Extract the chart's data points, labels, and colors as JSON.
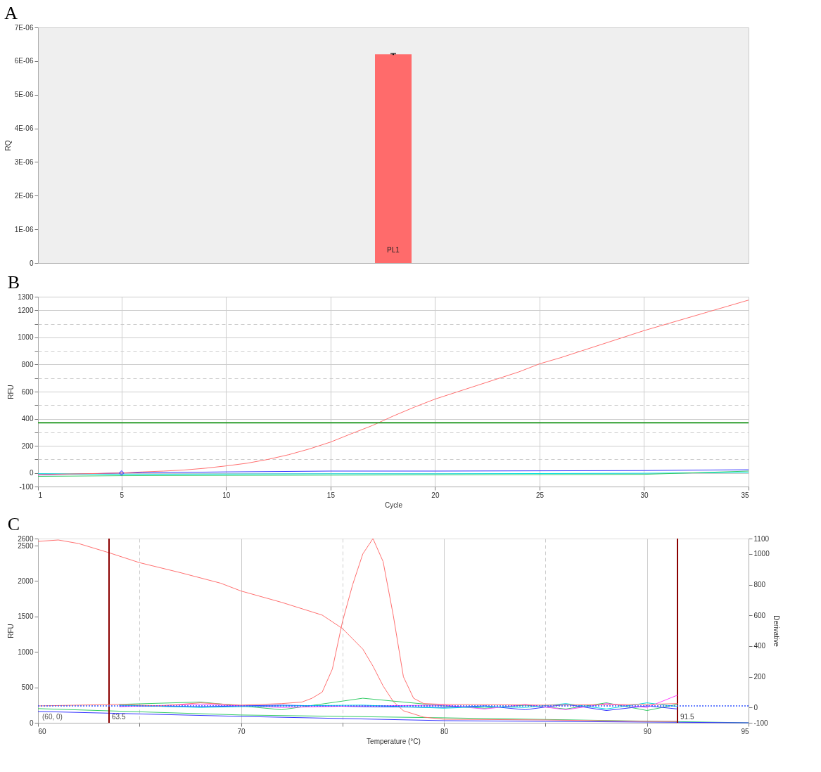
{
  "chart_data": [
    {
      "type": "bar",
      "title": "A",
      "ylabel": "RQ",
      "categories": [
        "PL1"
      ],
      "values": [
        6.2e-06
      ],
      "errors": [
        2e-08
      ],
      "color": "#ff6b6b",
      "ylim": [
        0,
        7e-06
      ],
      "yticks": [
        0,
        {
          "value": 1e-06,
          "label": "1E-06"
        },
        {
          "value": 2e-06,
          "label": "2E-06"
        },
        {
          "value": 3e-06,
          "label": "3E-06"
        },
        {
          "value": 4e-06,
          "label": "4E-06"
        },
        {
          "value": 5e-06,
          "label": "5E-06"
        },
        {
          "value": 6e-06,
          "label": "6E-06"
        },
        {
          "value": 7e-06,
          "label": "7E-06"
        }
      ]
    },
    {
      "type": "line",
      "title": "B",
      "xlabel": "Cycle",
      "ylabel": "RFU",
      "grid": true,
      "xlim": [
        1,
        35
      ],
      "xticks": [
        1,
        5,
        10,
        15,
        20,
        25,
        30,
        35
      ],
      "ylim": [
        -100,
        1300
      ],
      "yticks": [
        -100,
        0,
        {
          "value": 100,
          "label": null
        },
        200,
        {
          "value": 300,
          "label": null
        },
        400,
        {
          "value": 500,
          "label": null
        },
        600,
        {
          "value": 700,
          "label": null
        },
        800,
        {
          "value": 900,
          "label": null
        },
        1000,
        {
          "value": 1100,
          "label": null
        },
        1200,
        1300
      ],
      "ref_lines": [
        {
          "axis": "y",
          "value": 370,
          "color": "#2e9e2e"
        }
      ],
      "series": [
        {
          "color": "#3333ff",
          "x": [
            1,
            5,
            10,
            15,
            20,
            25,
            30,
            35
          ],
          "values": [
            -15,
            0,
            8,
            14,
            14,
            16,
            18,
            24
          ]
        },
        {
          "color": "#00e0e0",
          "x": [
            1,
            5,
            10,
            15,
            20,
            25,
            30,
            35
          ],
          "values": [
            -5,
            -10,
            -8,
            -6,
            -6,
            -4,
            -2,
            4
          ]
        },
        {
          "color": "#33cc66",
          "x": [
            1,
            5,
            10,
            15,
            20,
            25,
            30,
            35
          ],
          "values": [
            -25,
            -20,
            -18,
            -16,
            -14,
            -12,
            -10,
            14
          ]
        },
        {
          "color": "#ff7070",
          "x": [
            1,
            2,
            3,
            4,
            5,
            6,
            7,
            8,
            9,
            10,
            11,
            12,
            13,
            14,
            15,
            16,
            17,
            18,
            19,
            20,
            21,
            22,
            23,
            24,
            25,
            26,
            27,
            28,
            29,
            30,
            31,
            32,
            33,
            34,
            35
          ],
          "values": [
            -12,
            -9,
            -6,
            -3,
            0,
            8,
            14,
            22,
            35,
            52,
            72,
            100,
            135,
            178,
            228,
            290,
            350,
            420,
            485,
            545,
            595,
            645,
            695,
            745,
            805,
            850,
            900,
            950,
            1000,
            1050,
            1095,
            1140,
            1185,
            1230,
            1275
          ]
        },
        {
          "type": "scatter",
          "marker": "diamond",
          "color": "#3333ff",
          "x": [
            5
          ],
          "values": [
            0
          ]
        }
      ]
    },
    {
      "type": "line",
      "title": "C",
      "xlabel": "Temperature (°C)",
      "ylabel": "RFU",
      "y2label": "Derivative",
      "grid": "x",
      "xlim": [
        60,
        95
      ],
      "xticks": [
        60,
        {
          "value": 65,
          "label": null
        },
        70,
        {
          "value": 75,
          "label": null
        },
        80,
        {
          "value": 85,
          "label": null
        },
        90,
        95
      ],
      "ylim": [
        0,
        2600
      ],
      "yticks": [
        0,
        500,
        1000,
        1500,
        2000,
        2500,
        2600
      ],
      "y2lim": [
        -100,
        1100
      ],
      "y2ticks": [
        -100,
        0,
        200,
        400,
        600,
        800,
        1000,
        1100
      ],
      "ref_lines": [
        {
          "axis": "x",
          "value": 63.5,
          "label": "63.5",
          "color": "#8b0000"
        },
        {
          "axis": "x",
          "value": 91.5,
          "label": "91.5",
          "color": "#8b0000"
        },
        {
          "axis": "y2",
          "value": 10,
          "color": "#3355ff",
          "line_style": "dotted"
        }
      ],
      "annotations": [
        "(60, 0)"
      ],
      "series": [
        {
          "color": "#33cc66",
          "x": [
            60,
            70,
            80,
            95
          ],
          "values": [
            200,
            110,
            70,
            0
          ]
        },
        {
          "color": "#3333ff",
          "x": [
            60,
            70,
            80,
            95
          ],
          "values": [
            160,
            90,
            30,
            0
          ]
        },
        {
          "color": "#ff7070",
          "x": [
            60,
            61,
            62,
            63.5,
            65,
            67,
            69,
            70,
            72,
            74,
            75,
            76,
            76.5,
            77,
            77.5,
            78,
            79,
            80,
            85,
            90,
            91.5
          ],
          "values": [
            2560,
            2580,
            2530,
            2400,
            2260,
            2120,
            1970,
            1860,
            1700,
            1520,
            1330,
            1040,
            800,
            520,
            300,
            170,
            80,
            50,
            40,
            20,
            20
          ]
        },
        {
          "axis": "y2",
          "color": "#33cc66",
          "x": [
            64,
            68,
            72,
            76,
            80,
            82,
            84,
            86,
            88,
            90,
            91.5
          ],
          "values": [
            20,
            35,
            -15,
            60,
            10,
            -5,
            15,
            -10,
            30,
            -20,
            20
          ]
        },
        {
          "axis": "y2",
          "color": "#3333ff",
          "x": [
            64,
            68,
            72,
            76,
            80,
            82,
            84,
            86,
            88,
            90,
            91.5
          ],
          "values": [
            10,
            5,
            15,
            5,
            0,
            10,
            -15,
            20,
            -20,
            10,
            -10
          ]
        },
        {
          "axis": "y2",
          "color": "#ff44ff",
          "x": [
            64,
            68,
            72,
            76,
            80,
            82,
            84,
            86,
            88,
            90,
            91.5
          ],
          "values": [
            5,
            20,
            0,
            10,
            15,
            -10,
            20,
            -15,
            25,
            0,
            80
          ]
        },
        {
          "axis": "y2",
          "color": "#00e0e0",
          "x": [
            64,
            68,
            72,
            76,
            80,
            82,
            84,
            86,
            88,
            90,
            91.5
          ],
          "values": [
            15,
            0,
            10,
            15,
            -5,
            5,
            0,
            25,
            -10,
            30,
            5
          ]
        },
        {
          "axis": "y2",
          "color": "#ff7070",
          "x": [
            60,
            62,
            64,
            66,
            68,
            70,
            72,
            73,
            73.5,
            74,
            74.5,
            75,
            75.5,
            76,
            76.5,
            77,
            77.5,
            78,
            78.5,
            79,
            80,
            85,
            90,
            91.5
          ],
          "values": [
            10,
            15,
            20,
            10,
            30,
            15,
            25,
            35,
            60,
            100,
            250,
            560,
            800,
            1000,
            1100,
            950,
            600,
            200,
            60,
            25,
            20,
            15,
            20,
            25
          ]
        }
      ]
    }
  ]
}
